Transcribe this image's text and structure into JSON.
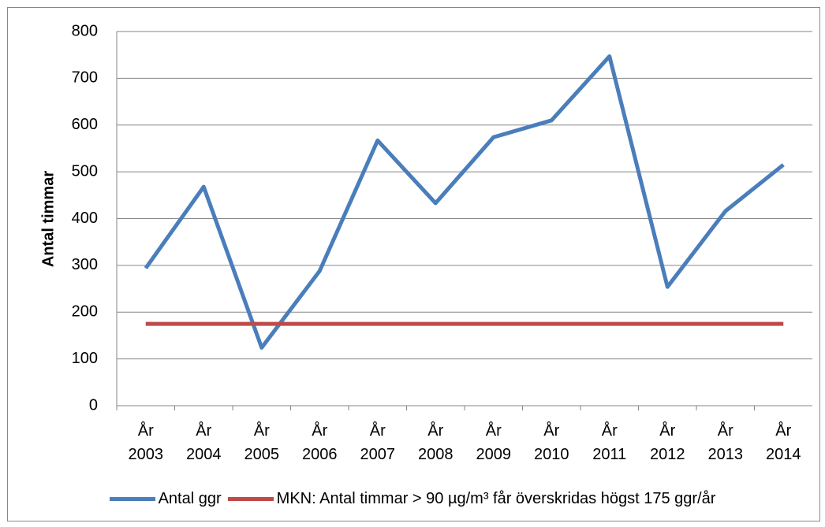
{
  "chart_data": {
    "type": "line",
    "y_label": "Antal timmar",
    "categories": [
      "År 2003",
      "År 2004",
      "År 2005",
      "År 2006",
      "År 2007",
      "År 2008",
      "År 2009",
      "År 2010",
      "År 2011",
      "År 2012",
      "År 2013",
      "År 2014"
    ],
    "series": [
      {
        "name": "Antal ggr",
        "color": "#4a7ebb",
        "values": [
          294,
          468,
          124,
          288,
          567,
          433,
          574,
          610,
          747,
          254,
          416,
          515
        ]
      },
      {
        "name": "MKN: Antal timmar > 90 µg/m³ får överskridas högst 175 ggr/år",
        "color": "#be4b48",
        "values": [
          175,
          175,
          175,
          175,
          175,
          175,
          175,
          175,
          175,
          175,
          175,
          175
        ]
      }
    ],
    "ylim": [
      0,
      800
    ],
    "yticks": [
      0,
      100,
      200,
      300,
      400,
      500,
      600,
      700,
      800
    ],
    "grid": true,
    "legend": "bottom"
  }
}
